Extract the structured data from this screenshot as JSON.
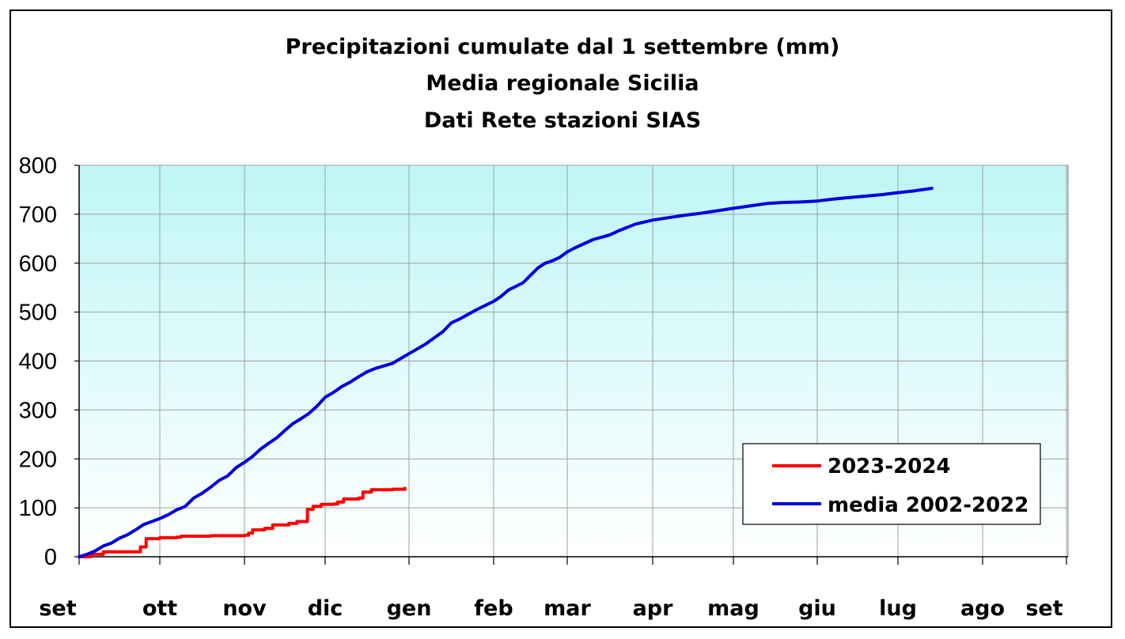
{
  "chart_data": {
    "type": "line",
    "title": "Precipitazioni cumulate dal 1 settembre (mm)",
    "subtitles": [
      "Media regionale Sicilia",
      "Dati Rete stazioni SIAS"
    ],
    "xlabel": "",
    "ylabel": "",
    "categories": [
      "set",
      "ott",
      "nov",
      "dic",
      "gen",
      "feb",
      "mar",
      "apr",
      "mag",
      "giu",
      "lug",
      "ago",
      "set"
    ],
    "x_unit": "months since 1 September",
    "ylim": [
      0,
      800
    ],
    "yticks": [
      0,
      100,
      200,
      300,
      400,
      500,
      600,
      700,
      800
    ],
    "grid": true,
    "legend_position": "bottom-right",
    "series": [
      {
        "name": "2023-2024",
        "color": "#ff0000",
        "step": true,
        "points": [
          [
            0,
            0
          ],
          [
            0.15,
            5
          ],
          [
            0.3,
            10
          ],
          [
            0.7,
            10
          ],
          [
            0.76,
            20
          ],
          [
            0.83,
            37
          ],
          [
            1.0,
            39
          ],
          [
            1.2,
            40
          ],
          [
            1.25,
            42
          ],
          [
            1.6,
            43
          ],
          [
            2.0,
            44
          ],
          [
            2.05,
            48
          ],
          [
            2.1,
            55
          ],
          [
            2.25,
            58
          ],
          [
            2.35,
            65
          ],
          [
            2.55,
            68
          ],
          [
            2.65,
            72
          ],
          [
            2.75,
            72
          ],
          [
            2.78,
            97
          ],
          [
            2.85,
            103
          ],
          [
            2.95,
            107
          ],
          [
            3.1,
            108
          ],
          [
            3.15,
            112
          ],
          [
            3.22,
            118
          ],
          [
            3.4,
            120
          ],
          [
            3.45,
            132
          ],
          [
            3.55,
            137
          ],
          [
            3.7,
            137
          ],
          [
            3.8,
            138
          ],
          [
            3.95,
            140
          ]
        ]
      },
      {
        "name": "media 2002-2022",
        "color": "#0000dd",
        "step": false,
        "points": [
          [
            0,
            0
          ],
          [
            0.1,
            5
          ],
          [
            0.2,
            12
          ],
          [
            0.3,
            22
          ],
          [
            0.4,
            28
          ],
          [
            0.5,
            38
          ],
          [
            0.6,
            45
          ],
          [
            0.7,
            55
          ],
          [
            0.8,
            66
          ],
          [
            0.9,
            72
          ],
          [
            1.0,
            78
          ],
          [
            1.1,
            86
          ],
          [
            1.2,
            96
          ],
          [
            1.3,
            103
          ],
          [
            1.4,
            120
          ],
          [
            1.5,
            130
          ],
          [
            1.6,
            142
          ],
          [
            1.7,
            156
          ],
          [
            1.8,
            165
          ],
          [
            1.9,
            182
          ],
          [
            2.0,
            193
          ],
          [
            2.1,
            205
          ],
          [
            2.2,
            220
          ],
          [
            2.3,
            232
          ],
          [
            2.4,
            243
          ],
          [
            2.5,
            258
          ],
          [
            2.6,
            272
          ],
          [
            2.7,
            282
          ],
          [
            2.8,
            293
          ],
          [
            2.9,
            308
          ],
          [
            3.0,
            326
          ],
          [
            3.1,
            336
          ],
          [
            3.2,
            348
          ],
          [
            3.3,
            357
          ],
          [
            3.4,
            368
          ],
          [
            3.5,
            378
          ],
          [
            3.6,
            385
          ],
          [
            3.7,
            390
          ],
          [
            3.8,
            395
          ],
          [
            3.9,
            405
          ],
          [
            4.0,
            415
          ],
          [
            4.2,
            435
          ],
          [
            4.4,
            460
          ],
          [
            4.5,
            478
          ],
          [
            4.6,
            486
          ],
          [
            4.8,
            505
          ],
          [
            5.0,
            522
          ],
          [
            5.1,
            532
          ],
          [
            5.2,
            545
          ],
          [
            5.4,
            560
          ],
          [
            5.5,
            575
          ],
          [
            5.6,
            590
          ],
          [
            5.7,
            600
          ],
          [
            5.8,
            605
          ],
          [
            5.9,
            612
          ],
          [
            6.0,
            623
          ],
          [
            6.1,
            632
          ],
          [
            6.2,
            640
          ],
          [
            6.3,
            648
          ],
          [
            6.4,
            653
          ],
          [
            6.5,
            658
          ],
          [
            6.6,
            666
          ],
          [
            6.7,
            673
          ],
          [
            6.8,
            680
          ],
          [
            7.0,
            688
          ],
          [
            7.2,
            693
          ],
          [
            7.4,
            698
          ],
          [
            7.6,
            702
          ],
          [
            7.8,
            707
          ],
          [
            8.0,
            712
          ],
          [
            8.2,
            717
          ],
          [
            8.4,
            722
          ],
          [
            8.6,
            724
          ],
          [
            8.8,
            725
          ],
          [
            9.0,
            727
          ],
          [
            9.2,
            731
          ],
          [
            9.4,
            734
          ],
          [
            9.6,
            737
          ],
          [
            9.8,
            740
          ],
          [
            10.0,
            744
          ],
          [
            10.2,
            748
          ],
          [
            10.4,
            753
          ]
        ]
      }
    ]
  }
}
